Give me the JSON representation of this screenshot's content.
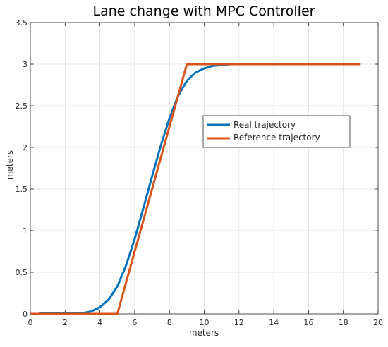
{
  "chart_data": {
    "type": "line",
    "title": "Lane change with MPC Controller",
    "xlabel": "meters",
    "ylabel": "meters",
    "xlim": [
      0,
      20
    ],
    "ylim": [
      0,
      3.5
    ],
    "xticks": [
      0,
      2,
      4,
      6,
      8,
      10,
      12,
      14,
      16,
      18,
      20
    ],
    "yticks": [
      0,
      0.5,
      1,
      1.5,
      2,
      2.5,
      3,
      3.5
    ],
    "xtick_labels": [
      "0",
      "2",
      "4",
      "6",
      "8",
      "10",
      "12",
      "14",
      "16",
      "18",
      "20"
    ],
    "ytick_labels": [
      "0",
      "0.5",
      "1",
      "1.5",
      "2",
      "2.5",
      "3",
      "3.5"
    ],
    "grid": true,
    "legend_position": "center-right",
    "series": [
      {
        "name": "Real trajectory",
        "color": "#0072BD",
        "x": [
          0.5,
          1,
          2,
          3,
          3.5,
          4,
          4.5,
          5,
          5.5,
          6,
          6.5,
          7,
          7.5,
          8,
          8.5,
          9,
          9.5,
          10,
          10.5,
          11,
          11.5,
          12,
          13,
          14
        ],
        "y": [
          0.01,
          0.01,
          0.01,
          0.01,
          0.03,
          0.08,
          0.17,
          0.33,
          0.58,
          0.9,
          1.27,
          1.65,
          2.02,
          2.35,
          2.62,
          2.8,
          2.9,
          2.95,
          2.98,
          2.99,
          3.0,
          3.0,
          3.0,
          3.0
        ]
      },
      {
        "name": "Reference trajectory",
        "color": "#D95319",
        "x": [
          0,
          5,
          9,
          19
        ],
        "y": [
          0,
          0,
          3,
          3
        ]
      }
    ]
  }
}
